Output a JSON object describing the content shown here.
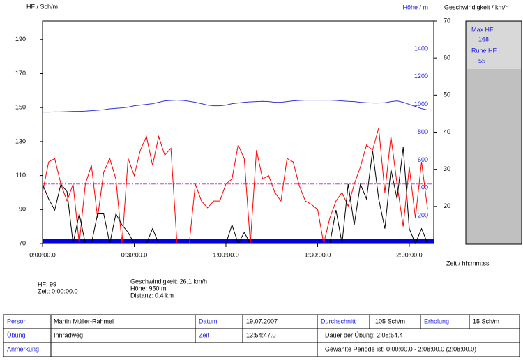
{
  "chart_data": {
    "type": "line",
    "y_label": "HF / Sch/m",
    "y2_label": "Geschwindigkeit / km/h",
    "y3_label": "Höhe / m",
    "x_label": "Zeit / hh:mm:ss",
    "x": [
      0,
      2,
      4,
      6,
      8,
      10,
      12,
      14,
      16,
      18,
      20,
      22,
      24,
      26,
      28,
      30,
      32,
      34,
      36,
      38,
      40,
      42,
      44,
      46,
      48,
      50,
      52,
      54,
      56,
      58,
      60,
      62,
      64,
      66,
      68,
      70,
      72,
      74,
      76,
      78,
      80,
      82,
      84,
      86,
      88,
      90,
      92,
      94,
      96,
      98,
      100,
      102,
      104,
      106,
      108,
      110,
      112,
      114,
      116,
      118,
      120,
      122,
      124,
      126
    ],
    "xlim": [
      0,
      128
    ],
    "xticks": [
      {
        "value": 0,
        "label": "0:00:00.0"
      },
      {
        "value": 30,
        "label": "0:30:00.0"
      },
      {
        "value": 60,
        "label": "1:00:00.0"
      },
      {
        "value": 90,
        "label": "1:30:00.0"
      },
      {
        "value": 120,
        "label": "2:00:00.0"
      }
    ],
    "ylim": [
      70,
      201
    ],
    "yticks": [
      70,
      90,
      110,
      130,
      150,
      170,
      190
    ],
    "y2lim": [
      10,
      70
    ],
    "y2ticks": [
      20,
      30,
      40,
      50,
      60,
      70
    ],
    "y3lim": [
      0,
      1600
    ],
    "y3ticks": [
      200,
      400,
      600,
      800,
      1000,
      1200,
      1400
    ],
    "reference_line": {
      "value": 105,
      "color": "#cc44cc"
    },
    "series": [
      {
        "color": "#ff0000",
        "axis": "y",
        "values": [
          100,
          118,
          120,
          105,
          95,
          105,
          70,
          105,
          116,
          85,
          112,
          120,
          108,
          70,
          120,
          110,
          125,
          133,
          116,
          133,
          122,
          126,
          70,
          70,
          70,
          105,
          95,
          91,
          95,
          95,
          105,
          108,
          128,
          120,
          70,
          125,
          108,
          110,
          100,
          95,
          120,
          118,
          104,
          95,
          93,
          90,
          70,
          85,
          95,
          100,
          92,
          105,
          115,
          128,
          125,
          138,
          100,
          133,
          105,
          80,
          115,
          85,
          118,
          90
        ]
      },
      {
        "color": "#000000",
        "axis": "y2",
        "values": [
          26,
          22,
          19,
          26,
          24,
          10,
          18,
          10,
          10,
          18,
          18,
          10,
          18,
          15,
          13,
          10,
          10,
          10,
          14,
          10,
          10,
          10,
          10,
          10,
          10,
          10,
          10,
          10,
          10,
          10,
          10,
          15,
          10,
          13,
          10,
          10,
          10,
          10,
          10,
          10,
          10,
          10,
          10,
          10,
          10,
          10,
          10,
          10,
          19,
          10,
          26,
          15,
          26,
          22,
          35,
          22,
          14,
          30,
          22,
          36,
          14,
          10,
          14,
          10
        ]
      },
      {
        "color": "#3333dd",
        "axis": "y3",
        "values": [
          945,
          945,
          946,
          946,
          948,
          950,
          950,
          952,
          955,
          958,
          962,
          968,
          972,
          975,
          980,
          990,
          995,
          1000,
          1005,
          1015,
          1025,
          1028,
          1030,
          1028,
          1022,
          1015,
          1005,
          995,
          990,
          990,
          995,
          1005,
          1010,
          1015,
          1018,
          1020,
          1022,
          1020,
          1015,
          1015,
          1020,
          1025,
          1028,
          1030,
          1030,
          1030,
          1030,
          1030,
          1028,
          1025,
          1022,
          1020,
          1015,
          1012,
          1010,
          1010,
          1012,
          1020,
          1025,
          1015,
          1000,
          985,
          970,
          960
        ]
      }
    ]
  },
  "panel": [
    "Max HF",
    "168",
    "Ruhe HF",
    "55"
  ],
  "cursor_info": [
    "HF: 99",
    "Zeit: 0:00:00.0",
    "Geschwindigkeit: 26.1 km/h",
    "Höhe: 950 m",
    "Distanz: 0.4 km"
  ],
  "table": {
    "rows": [
      [
        "Person",
        "Martin Müller-Rahmel",
        "Datum",
        "19.07.2007",
        "Durchschnitt",
        "105 Sch/m",
        "Erholung",
        "15 Sch/m"
      ],
      [
        "Übung",
        "Innradweg",
        "Zeit",
        "13:54:47.0",
        "Dauer der Übung: 2:08:54.4"
      ],
      [
        "Anmerkung",
        "Gewählte Periode ist: 0:00:00.0 - 2:08:00.0 (2:08:00.0)"
      ]
    ]
  }
}
